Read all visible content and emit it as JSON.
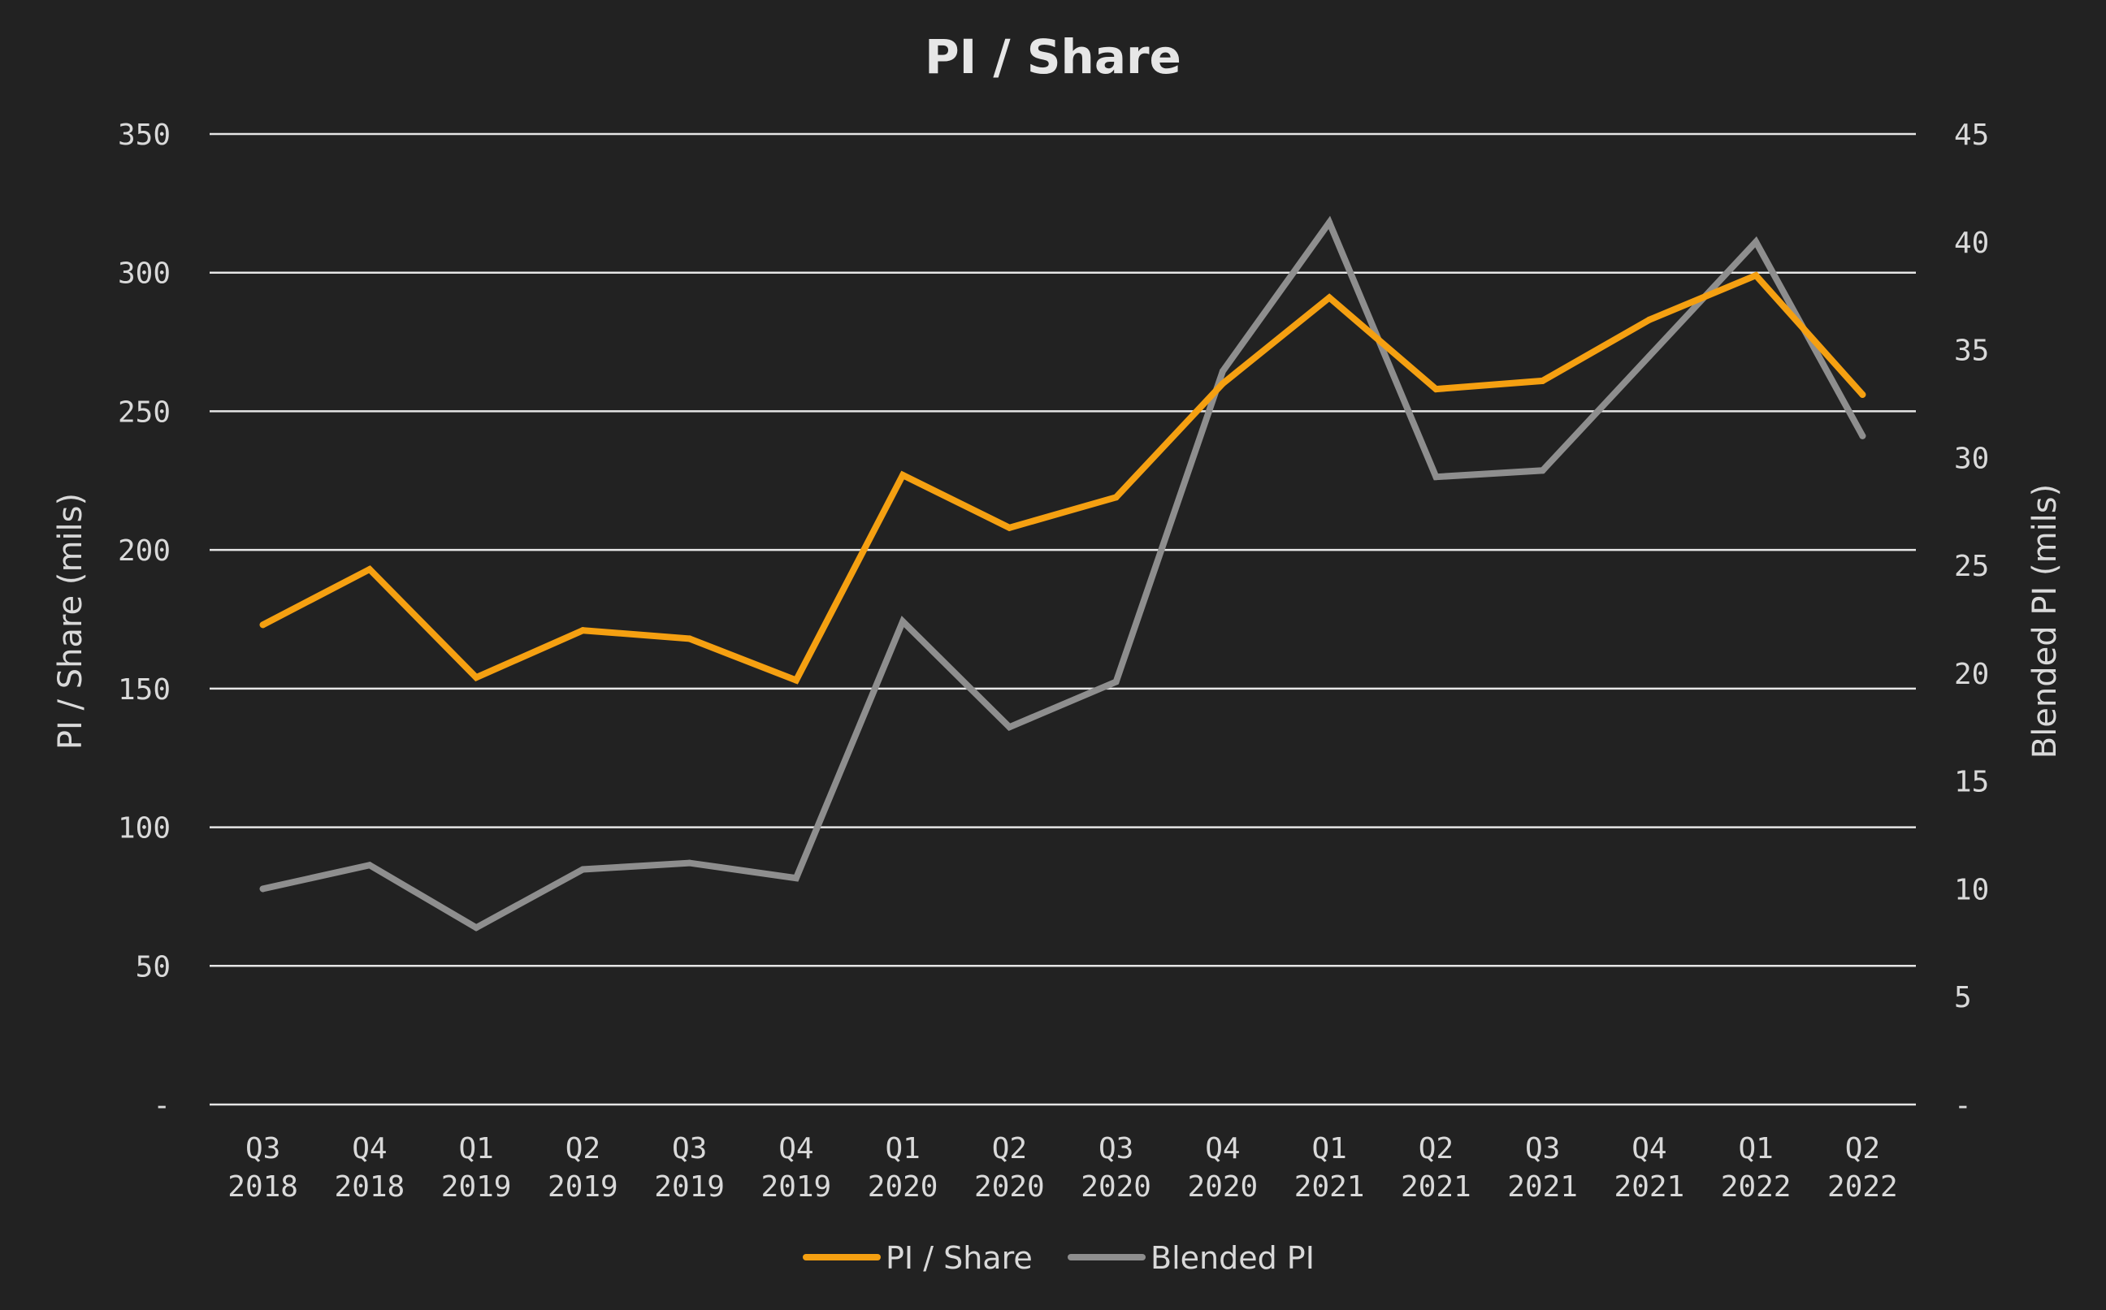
{
  "chart_data": {
    "type": "line",
    "title": "PI / Share",
    "categories": [
      [
        "Q3",
        "2018"
      ],
      [
        "Q4",
        "2018"
      ],
      [
        "Q1",
        "2019"
      ],
      [
        "Q2",
        "2019"
      ],
      [
        "Q3",
        "2019"
      ],
      [
        "Q4",
        "2019"
      ],
      [
        "Q1",
        "2020"
      ],
      [
        "Q2",
        "2020"
      ],
      [
        "Q3",
        "2020"
      ],
      [
        "Q4",
        "2020"
      ],
      [
        "Q1",
        "2021"
      ],
      [
        "Q2",
        "2021"
      ],
      [
        "Q3",
        "2021"
      ],
      [
        "Q4",
        "2021"
      ],
      [
        "Q1",
        "2022"
      ],
      [
        "Q2",
        "2022"
      ]
    ],
    "ylabel": "PI / Share (mils)",
    "ylabel_right": "Blended PI (mils)",
    "ylim": [
      0,
      350
    ],
    "ylim_right": [
      0,
      45
    ],
    "yticks": [
      "-",
      "50",
      "100",
      "150",
      "200",
      "250",
      "300",
      "350"
    ],
    "yticks_right": [
      "-",
      "5",
      "10",
      "15",
      "20",
      "25",
      "30",
      "35",
      "40",
      "45"
    ],
    "grid": true,
    "legend_position": "bottom-center",
    "series": [
      {
        "name": "PI / Share",
        "axis": "left",
        "color": "#f5a011",
        "values": [
          173,
          193,
          154,
          171,
          168,
          153,
          227,
          208,
          219,
          260,
          291,
          258,
          261,
          283,
          299,
          256
        ]
      },
      {
        "name": "Blended PI",
        "axis": "right",
        "color": "#8e8e8e",
        "values": [
          10.0,
          11.1,
          8.2,
          10.9,
          11.2,
          10.5,
          22.4,
          17.5,
          19.6,
          34.0,
          40.9,
          29.1,
          29.4,
          34.7,
          40.0,
          31.0
        ]
      }
    ]
  }
}
